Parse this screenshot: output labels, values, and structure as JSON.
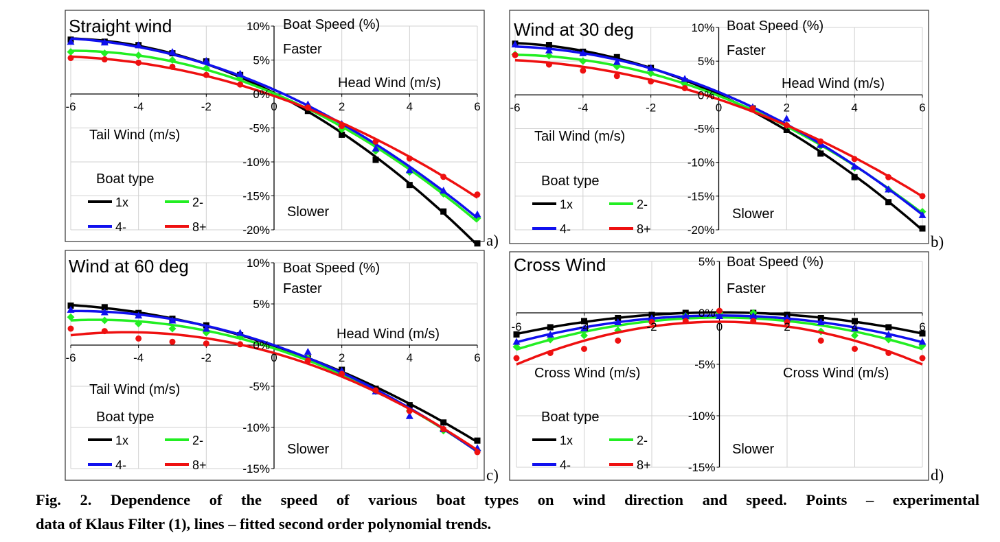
{
  "colors": {
    "1x": "#000000",
    "2-": "#22ee22",
    "4-": "#1010ee",
    "8+": "#ee1010",
    "grid": "#d0d0d0"
  },
  "markers": {
    "1x": "square",
    "2-": "diamond",
    "4-": "triangle",
    "8+": "circle"
  },
  "caption": {
    "line1": "Fig. 2. Dependence of the speed of various boat types on wind direction and speed. Points – experimental",
    "line2": "data of Klaus Filter (1), lines – fitted second order polynomial trends."
  },
  "chart_data": [
    {
      "type": "scatter+line",
      "panel_label": "a)",
      "title": "Straight wind",
      "ylabel": "Boat Speed (%)",
      "annotations": {
        "faster": "Faster",
        "slower": "Slower",
        "x_right": "Head Wind (m/s)",
        "x_left": "Tail Wind (m/s)"
      },
      "legend_title": "Boat type",
      "xlim": [
        -6,
        6
      ],
      "ylim": [
        -20,
        10
      ],
      "x_ticks": [
        "-6",
        "-4",
        "-2",
        "0",
        "2",
        "4",
        "6"
      ],
      "y_ticks": [
        "10%",
        "5%",
        "0%",
        "-5%",
        "-10%",
        "-15%",
        "-20%"
      ],
      "grid": true,
      "x": [
        -6,
        -5,
        -4,
        -3,
        -2,
        -1,
        0,
        1,
        2,
        3,
        4,
        5,
        6
      ],
      "series": [
        {
          "name": "1x",
          "values": [
            8.0,
            7.7,
            7.2,
            6.0,
            4.8,
            2.8,
            0,
            -2.5,
            -6.0,
            -9.7,
            -13.4,
            -17.3,
            -22.0
          ]
        },
        {
          "name": "2-",
          "values": [
            6.2,
            6.0,
            5.7,
            5.0,
            3.8,
            2.4,
            0,
            -1.8,
            -5.2,
            -8.4,
            -11.5,
            -14.7,
            -18.3
          ]
        },
        {
          "name": "4-",
          "values": [
            7.7,
            7.6,
            7.2,
            6.2,
            4.9,
            3.0,
            0,
            -1.5,
            -4.4,
            -8.0,
            -11.2,
            -14.2,
            -17.7
          ]
        },
        {
          "name": "8+",
          "values": [
            5.3,
            5.1,
            4.6,
            4.0,
            2.8,
            1.4,
            0,
            -2.0,
            -4.7,
            -7.0,
            -9.5,
            -12.2,
            -14.8
          ]
        }
      ]
    },
    {
      "type": "scatter+line",
      "panel_label": "b)",
      "title": "Wind at 30 deg",
      "ylabel": "Boat Speed (%)",
      "annotations": {
        "faster": "Faster",
        "slower": "Slower",
        "x_right": "Head Wind (m/s)",
        "x_left": "Tail Wind (m/s)"
      },
      "legend_title": "Boat type",
      "xlim": [
        -6,
        6
      ],
      "ylim": [
        -20,
        10
      ],
      "x_ticks": [
        "-6",
        "-4",
        "-2",
        "0",
        "2",
        "4",
        "6"
      ],
      "y_ticks": [
        "10%",
        "5%",
        "0%",
        "-5%",
        "-10%",
        "-15%",
        "-20%"
      ],
      "grid": true,
      "x": [
        -6,
        -5,
        -4,
        -3,
        -2,
        -1,
        0,
        1,
        2,
        3,
        4,
        5,
        6
      ],
      "series": [
        {
          "name": "1x",
          "values": [
            7.6,
            7.4,
            6.4,
            5.6,
            4.0,
            2.0,
            0,
            -2.0,
            -5.2,
            -8.7,
            -12.2,
            -15.9,
            -19.8
          ]
        },
        {
          "name": "2-",
          "values": [
            6.0,
            5.8,
            5.0,
            4.2,
            3.2,
            1.6,
            0,
            -2.0,
            -4.5,
            -7.6,
            -10.8,
            -14.0,
            -17.3
          ]
        },
        {
          "name": "4-",
          "values": [
            7.5,
            6.6,
            6.2,
            4.9,
            4.0,
            2.4,
            0,
            -1.8,
            -3.5,
            -7.4,
            -10.6,
            -14.0,
            -17.8
          ]
        },
        {
          "name": "8+",
          "values": [
            5.9,
            4.5,
            3.6,
            2.8,
            2.0,
            1.0,
            0,
            -2.0,
            -4.5,
            -6.9,
            -9.5,
            -12.2,
            -15.0
          ]
        }
      ]
    },
    {
      "type": "scatter+line",
      "panel_label": "c)",
      "title": "Wind at 60 deg",
      "ylabel": "Boat Speed (%)",
      "annotations": {
        "faster": "Faster",
        "slower": "Slower",
        "x_right": "Head Wind (m/s)",
        "x_left": "Tail Wind (m/s)"
      },
      "legend_title": "Boat type",
      "xlim": [
        -6,
        6
      ],
      "ylim": [
        -15,
        10
      ],
      "x_ticks": [
        "-6",
        "-4",
        "-2",
        "0",
        "2",
        "4",
        "6"
      ],
      "y_ticks": [
        "10%",
        "5%",
        "0%",
        "-5%",
        "-10%",
        "-15%"
      ],
      "grid": true,
      "x": [
        -6,
        -5,
        -4,
        -3,
        -2,
        -1,
        0,
        1,
        2,
        3,
        4,
        5,
        6
      ],
      "series": [
        {
          "name": "1x",
          "values": [
            4.8,
            4.6,
            3.9,
            3.2,
            2.4,
            1.2,
            0,
            -1.6,
            -3.0,
            -5.3,
            -7.3,
            -9.4,
            -11.6
          ]
        },
        {
          "name": "2-",
          "values": [
            3.4,
            3.0,
            2.6,
            2.0,
            1.5,
            1.0,
            0,
            -1.6,
            -3.4,
            -5.6,
            -8.0,
            -10.4,
            -12.8
          ]
        },
        {
          "name": "4-",
          "values": [
            4.3,
            4.0,
            3.6,
            3.0,
            2.0,
            1.5,
            0,
            -0.8,
            -3.1,
            -5.6,
            -8.6,
            -10.2,
            -12.5
          ]
        },
        {
          "name": "8+",
          "values": [
            2.0,
            1.7,
            0.8,
            0.4,
            0.2,
            0.1,
            0,
            -1.9,
            -3.5,
            -5.5,
            -8.0,
            -10.2,
            -13.0
          ]
        }
      ]
    },
    {
      "type": "scatter+line",
      "panel_label": "d)",
      "title": "Cross Wind",
      "ylabel": "Boat Speed (%)",
      "annotations": {
        "faster": "Faster",
        "slower": "Slower",
        "x_right": "Cross Wind (m/s)",
        "x_left": "Cross Wind (m/s)"
      },
      "legend_title": "Boat type",
      "xlim": [
        -6,
        6
      ],
      "ylim": [
        -15,
        5
      ],
      "x_ticks": [
        "-6",
        "-4",
        "-2",
        "0",
        "2",
        "4",
        "6"
      ],
      "y_ticks": [
        "5%",
        "0%",
        "-5%",
        "-10%",
        "-15%"
      ],
      "grid": true,
      "x": [
        -6,
        -5,
        -4,
        -3,
        -2,
        -1,
        0,
        1,
        2,
        3,
        4,
        5,
        6
      ],
      "series": [
        {
          "name": "1x",
          "values": [
            -2.1,
            -1.4,
            -0.8,
            -0.5,
            -0.2,
            0.0,
            0,
            0,
            -0.2,
            -0.5,
            -0.8,
            -1.4,
            -2.0
          ]
        },
        {
          "name": "2-",
          "values": [
            -3.3,
            -2.6,
            -2.2,
            -1.7,
            -0.8,
            -0.3,
            0,
            0,
            -0.8,
            -1.8,
            -2.2,
            -2.6,
            -3.2
          ]
        },
        {
          "name": "4-",
          "values": [
            -2.8,
            -2.1,
            -1.5,
            -0.9,
            -0.5,
            -0.3,
            -0.3,
            -0.3,
            -0.5,
            -0.9,
            -1.5,
            -2.1,
            -2.8
          ]
        },
        {
          "name": "8+",
          "values": [
            -4.4,
            -3.9,
            -3.5,
            -2.7,
            -0.9,
            -0.8,
            0.2,
            -0.8,
            -0.9,
            -2.7,
            -3.5,
            -3.9,
            -4.4
          ]
        }
      ]
    }
  ]
}
